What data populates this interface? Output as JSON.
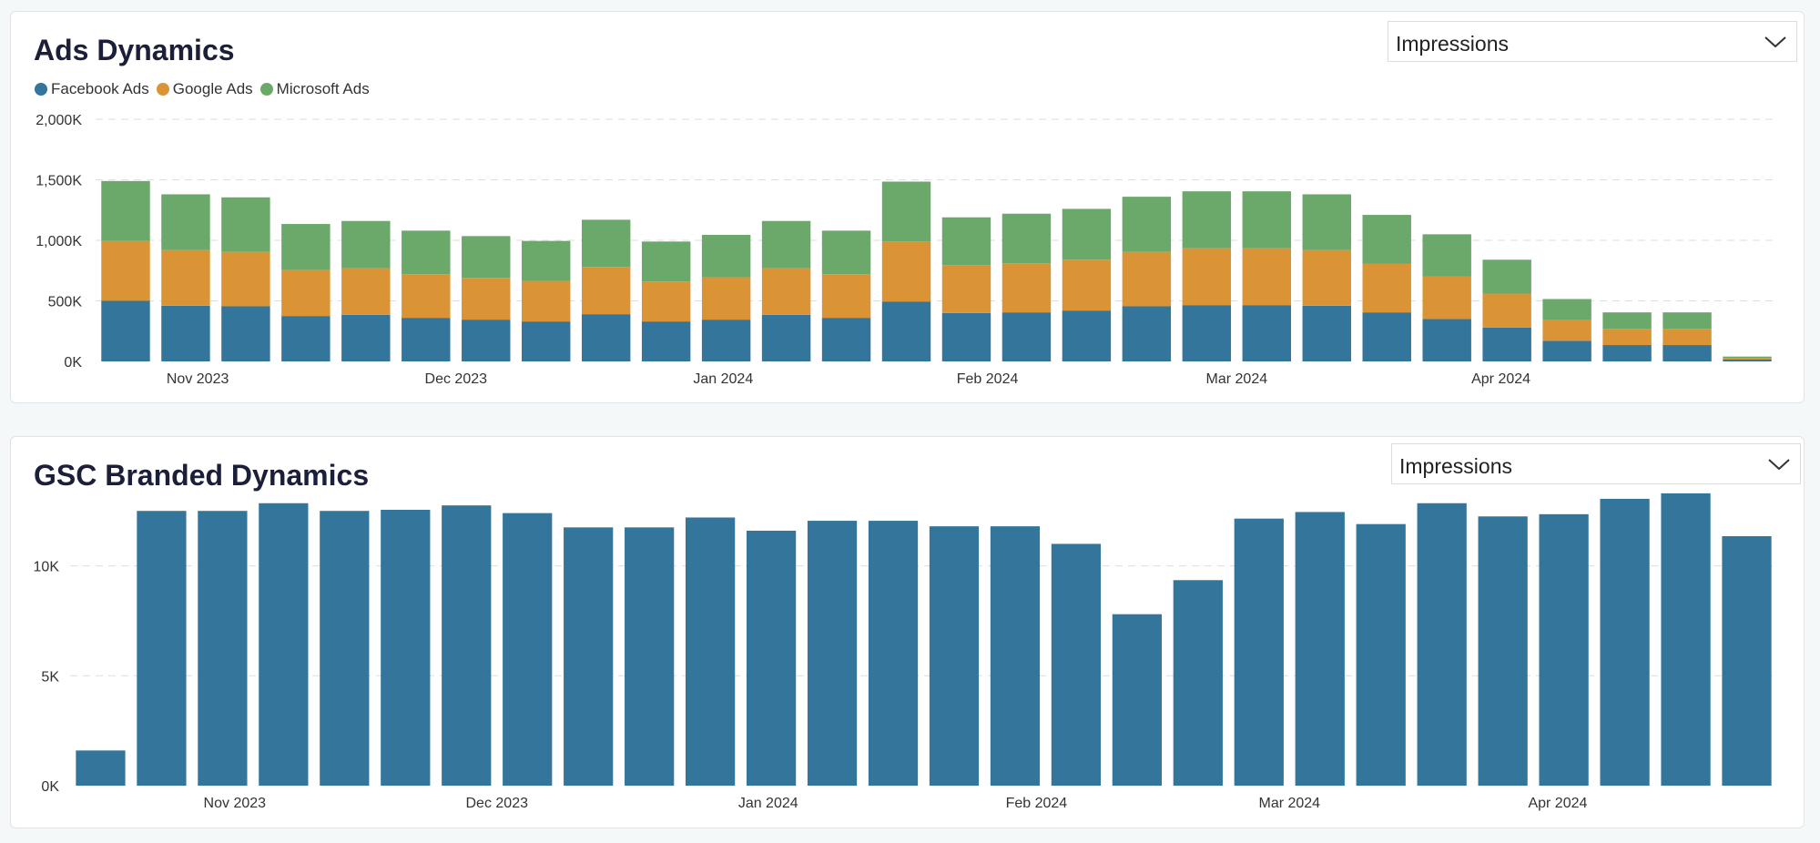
{
  "colors": {
    "facebook": "#33759b",
    "google": "#da9436",
    "microsoft": "#6aa96a",
    "gsc": "#33759b",
    "grid": "#dddddd"
  },
  "ads": {
    "title": "Ads Dynamics",
    "dropdown_value": "Impressions",
    "dropdown_icon": "chevron-down-icon",
    "legend": [
      {
        "name": "Facebook Ads",
        "color": "#33759b"
      },
      {
        "name": "Google Ads",
        "color": "#da9436"
      },
      {
        "name": "Microsoft Ads",
        "color": "#6aa96a"
      }
    ]
  },
  "gsc": {
    "title": "GSC Branded Dynamics",
    "dropdown_value": "Impressions",
    "dropdown_icon": "chevron-down-icon"
  },
  "chart_data": [
    {
      "type": "bar",
      "stacked": true,
      "title": "Ads Dynamics",
      "ylim": [
        0,
        2000000
      ],
      "y_ticks": [
        0,
        500000,
        1000000,
        1500000,
        2000000
      ],
      "y_tick_labels": [
        "0K",
        "500K",
        "1,000K",
        "1,500K",
        "2,000K"
      ],
      "x_tick_labels": [
        {
          "label": "Nov 2023",
          "at": 1.7
        },
        {
          "label": "Dec 2023",
          "at": 6.0
        },
        {
          "label": "Jan 2024",
          "at": 10.45
        },
        {
          "label": "Feb 2024",
          "at": 14.85
        },
        {
          "label": "Mar 2024",
          "at": 19.0
        },
        {
          "label": "Apr 2024",
          "at": 23.4
        }
      ],
      "grid": true,
      "legend_position": "top-left",
      "series": [
        {
          "name": "Facebook Ads",
          "color": "#33759b",
          "values": [
            500000,
            460000,
            455000,
            375000,
            385000,
            360000,
            345000,
            330000,
            390000,
            330000,
            345000,
            385000,
            360000,
            495000,
            400000,
            405000,
            420000,
            455000,
            465000,
            465000,
            460000,
            405000,
            350000,
            280000,
            170000,
            135000,
            135000,
            15000
          ]
        },
        {
          "name": "Google Ads",
          "color": "#da9436",
          "values": [
            495000,
            460000,
            450000,
            380000,
            385000,
            360000,
            345000,
            335000,
            390000,
            330000,
            350000,
            385000,
            360000,
            495000,
            395000,
            405000,
            420000,
            450000,
            470000,
            470000,
            460000,
            400000,
            350000,
            280000,
            170000,
            135000,
            135000,
            10000
          ]
        },
        {
          "name": "Microsoft Ads",
          "color": "#6aa96a",
          "values": [
            495000,
            460000,
            450000,
            380000,
            390000,
            360000,
            345000,
            330000,
            390000,
            330000,
            350000,
            390000,
            360000,
            495000,
            395000,
            410000,
            420000,
            455000,
            470000,
            470000,
            460000,
            405000,
            350000,
            280000,
            175000,
            135000,
            135000,
            15000
          ]
        }
      ]
    },
    {
      "type": "bar",
      "stacked": false,
      "title": "GSC Branded Dynamics",
      "ylim": [
        0,
        14000
      ],
      "y_ticks": [
        0,
        5000,
        10000
      ],
      "y_tick_labels": [
        "0K",
        "5K",
        "10K"
      ],
      "x_tick_labels": [
        {
          "label": "Nov 2023",
          "at": 2.7
        },
        {
          "label": "Dec 2023",
          "at": 7.0
        },
        {
          "label": "Jan 2024",
          "at": 11.45
        },
        {
          "label": "Feb 2024",
          "at": 15.85
        },
        {
          "label": "Mar 2024",
          "at": 20.0
        },
        {
          "label": "Apr 2024",
          "at": 24.4
        }
      ],
      "grid": true,
      "series": [
        {
          "name": "",
          "color": "#33759b",
          "values": [
            1600,
            12500,
            12500,
            12850,
            12500,
            12550,
            12750,
            12400,
            11750,
            11750,
            12200,
            11600,
            12050,
            12050,
            11800,
            11800,
            11000,
            7800,
            9350,
            12150,
            12450,
            11900,
            12850,
            12250,
            12350,
            13050,
            13300,
            11350
          ]
        }
      ]
    }
  ]
}
